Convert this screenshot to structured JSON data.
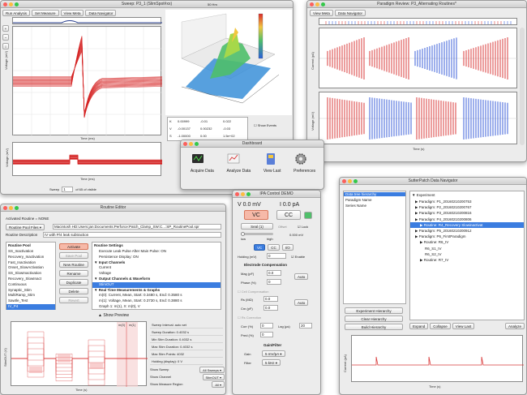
{
  "sweep_window": {
    "title": "Sweep: P3_1 (SlimSpot#xx)",
    "toolbar": [
      "Run Analysis",
      "Set Measure",
      "View Meta",
      "Data Navigator"
    ],
    "zoom": "50 Hm",
    "y_axis_top": "Voltage (mV)",
    "x_axis_top": "Time (ms)",
    "y_axis_bottom": "Voltage (mV)",
    "x_axis_bottom": "Time (ms)",
    "sweep_label": "Sweep",
    "sweep_value": "1",
    "sweep_of": "of 65 of visible",
    "stats": [
      {
        "k": "K",
        "a": "0.00999",
        "b": "-0.01",
        "c": "0.022"
      },
      {
        "k": "V",
        "a": "-0.00137",
        "b": "0.00232",
        "c": "-0.03"
      },
      {
        "k": "S",
        "a": "-1.00000",
        "b": "0.00",
        "c": "1.5e+02"
      }
    ],
    "show_events": "Show Events"
  },
  "paradigm_window": {
    "title": "Paradigm Review: P3_Alternating Routines*",
    "toolbar": [
      "View Meta",
      "Data Navigator"
    ],
    "y_axis_top": "Current (pA)",
    "y_axis_bottom": "Voltage (mV)",
    "x_axis": "Time (s)",
    "colors": {
      "red": "#d93b3b",
      "blue": "#3b5fd9"
    }
  },
  "dashboard": {
    "title": "Dashboard",
    "items": [
      "Acquire Data",
      "Analyze Data",
      "View Last",
      "Preferences"
    ]
  },
  "routine_editor": {
    "title": "Routine Editor",
    "activated": "Activated Routine = NONE",
    "pool_files": "Routine Pool Files",
    "path": "Macintosh HD:Users:jan:Documents:Perforce:Patch_Clamp_SW:C...:SP_RoutinePool.spr",
    "description_label": "Routine Description",
    "description": "IV with P/4 leak subtraction",
    "pool_header": "Routine Pool",
    "pool_items": [
      "SS_Inactivation",
      "Recovery_Inactivation",
      "Fast_Inactivation",
      "Onset_SlowActivation",
      "SS_SlowInactivation",
      "Recovery_SlowInact",
      "Continuous",
      "Synaptic_Stim",
      "MultiRamp_Stim",
      "Sawtle_Test",
      "IV_P4"
    ],
    "pool_selected_index": 10,
    "buttons": [
      "Activate",
      "Save Pool",
      "New Routine",
      "Rename",
      "Duplicate",
      "Delete",
      "Revert"
    ],
    "settings_header": "Routine Settings",
    "settings": [
      {
        "t": "Execute Leak Pulse After Main Pulse: ON",
        "b": false,
        "s": false
      },
      {
        "t": "Persistence Display: ON",
        "b": false,
        "s": false
      },
      {
        "t": "▼ Input Channels",
        "b": true,
        "s": false
      },
      {
        "t": "Current",
        "b": false,
        "s": false
      },
      {
        "t": "Voltage",
        "b": false,
        "s": false
      },
      {
        "t": "▼ Output Channels & Waveform",
        "b": true,
        "s": false
      },
      {
        "t": "StimOUT",
        "b": false,
        "s": true
      },
      {
        "t": "▼ Real Time Measurements & Graphs",
        "b": true,
        "s": false
      },
      {
        "t": "m(0): Current, Mean, Start: 0.3480 s, End: 0.3580 s",
        "b": false,
        "s": false
      },
      {
        "t": "m(1): Voltage, Mean, Start: 0.3730 s, End: 0.3880 s",
        "b": false,
        "s": false
      },
      {
        "t": "Graph 1: m(1), X: m(0), V",
        "b": false,
        "s": false
      }
    ],
    "show_preview": "Show Preview",
    "preview_y": "StimOUT (V)",
    "preview_x": "Time (s)",
    "markers": [
      "m(0)",
      "m(1)"
    ],
    "params": [
      {
        "label": "Sweep Interval: auto set"
      },
      {
        "label": "Sweep Duration: 0.4032 s"
      },
      {
        "label": "Min Stim Duration: 0.4032 s"
      },
      {
        "label": "Max Stim Duration: 0.4032 s"
      },
      {
        "label": "Max Stim Points: 4032"
      },
      {
        "label": "Holding (display): 0 V"
      }
    ],
    "show_sweep_label": "Show Sweep",
    "show_sweep_value": "All Sweeps",
    "show_channel_label": "Show Channel",
    "show_channel_value": "StimOUT",
    "measure_region_label": "Show Measure Region",
    "measure_region_value": "All"
  },
  "ipa": {
    "title": "IPA Control  DEMO",
    "v_reading": "V  0.0 mV",
    "i_reading": "I  0.0 pA",
    "vc": "VC",
    "cc": "CC",
    "seal": "Seal (1)",
    "offset": "Offset",
    "lock": "Lock",
    "low": "low",
    "high": "high",
    "offset_value": "0.000 mV",
    "mode_vc": "VC",
    "mode_cc": "CC",
    "mode_io": "I/O",
    "holding_label": "Holding (mV)",
    "holding_value": "0",
    "enable": "Enable",
    "electrode_comp": "Electrode Compensation",
    "mag_label": "Mag (pF)",
    "mag_value": "0.0",
    "phase_label": "Phase (%)",
    "phase_value": "0",
    "auto": "Auto",
    "cell_comp": "Cell Compensation",
    "rs_label": "Rs (MΩ)",
    "rs_value": "0.0",
    "cm_label": "Cm (pF)",
    "cm_value": "0.0",
    "rs_correction": "Rs Correction",
    "corr_label": "Corr (%)",
    "corr_value": "0",
    "lag_label": "Lag (µs)",
    "lag_value": "20",
    "pred_label": "Pred (%)",
    "pred_value": "0",
    "gain_filter": "Gain/Filter",
    "gain_label": "Gain",
    "gain_value": "5 mV/pA",
    "filter_label": "Filter",
    "filter_value": "5 kHz"
  },
  "navigator": {
    "title": "SutterPatch Data Navigator",
    "hierarchy": [
      "Data tree hierarchy",
      "Paradigm Name",
      "Series Name"
    ],
    "tree_root": "Experiment",
    "tree": [
      {
        "t": "Paradigm: P1_20160210200753",
        "i": 1,
        "s": false
      },
      {
        "t": "Paradigm: P2_20160210200767",
        "i": 1,
        "s": false
      },
      {
        "t": "Paradigm: P3_20160210200816",
        "i": 1,
        "s": false
      },
      {
        "t": "Paradigm: P4_20160210200806",
        "i": 1,
        "s": false
      },
      {
        "t": "Routine: R4_Recovery Slowinactivat",
        "i": 2,
        "s": true
      },
      {
        "t": "Paradigm: P5_20160210200912",
        "i": 1,
        "s": false
      },
      {
        "t": "Paradigm: P6_FirstParadigm",
        "i": 1,
        "s": false
      },
      {
        "t": "Routine: R6_IV",
        "i": 2,
        "s": false
      },
      {
        "t": "R6_S1_IV",
        "i": 3,
        "s": false
      },
      {
        "t": "R6_S2_IV",
        "i": 3,
        "s": false
      },
      {
        "t": "Routine: R7_IV",
        "i": 2,
        "s": false
      }
    ],
    "buttons_left": [
      "Experiment Hierarchy",
      "Clear Hierarchy",
      "Build Hierarchy"
    ],
    "buttons_right": [
      "Expand",
      "Collapse",
      "View Last",
      "Analyze"
    ],
    "y_axis": "Current (pA)",
    "x_axis": "Time (s)"
  }
}
